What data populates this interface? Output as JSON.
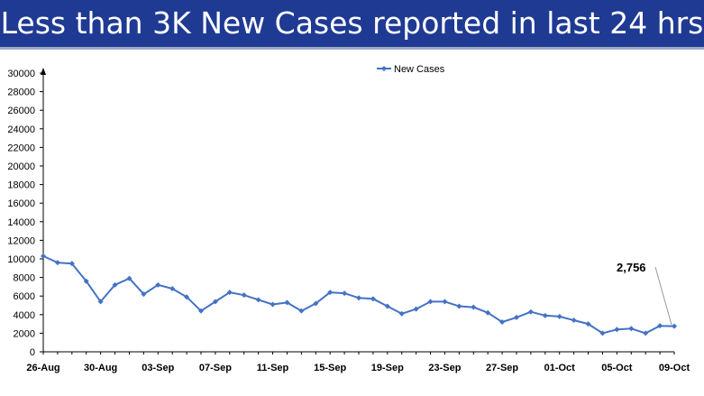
{
  "header": {
    "title": "Less than 3K New Cases reported in last 24 hrs"
  },
  "colors": {
    "banner": "#1f3a93",
    "series": "#4472c4"
  },
  "chart_data": {
    "type": "line",
    "title": "Less than 3K New Cases reported in last 24 hrs",
    "xlabel": "",
    "ylabel": "",
    "ylim": [
      0,
      30000
    ],
    "yticks": [
      0,
      2000,
      4000,
      6000,
      8000,
      10000,
      12000,
      14000,
      16000,
      18000,
      20000,
      22000,
      24000,
      26000,
      28000,
      30000
    ],
    "legend_position": "top",
    "series": [
      {
        "name": "New Cases",
        "x": [
          "26-Aug",
          "27-Aug",
          "28-Aug",
          "29-Aug",
          "30-Aug",
          "31-Aug",
          "01-Sep",
          "02-Sep",
          "03-Sep",
          "04-Sep",
          "05-Sep",
          "06-Sep",
          "07-Sep",
          "08-Sep",
          "09-Sep",
          "10-Sep",
          "11-Sep",
          "12-Sep",
          "13-Sep",
          "14-Sep",
          "15-Sep",
          "16-Sep",
          "17-Sep",
          "18-Sep",
          "19-Sep",
          "20-Sep",
          "21-Sep",
          "22-Sep",
          "23-Sep",
          "24-Sep",
          "25-Sep",
          "26-Sep",
          "27-Sep",
          "28-Sep",
          "29-Sep",
          "30-Sep",
          "01-Oct",
          "02-Oct",
          "03-Oct",
          "04-Oct",
          "05-Oct",
          "06-Oct",
          "07-Oct",
          "08-Oct",
          "09-Oct"
        ],
        "values": [
          10300,
          9600,
          9500,
          7600,
          5400,
          7200,
          7900,
          6200,
          7200,
          6800,
          5900,
          4400,
          5400,
          6400,
          6100,
          5600,
          5100,
          5300,
          4400,
          5200,
          6400,
          6300,
          5800,
          5700,
          4900,
          4100,
          4600,
          5400,
          5400,
          4900,
          4800,
          4200,
          3200,
          3700,
          4300,
          3900,
          3800,
          3400,
          3000,
          2000,
          2400,
          2500,
          2000,
          2800,
          2756
        ]
      }
    ],
    "xtick_labels": [
      "26-Aug",
      "30-Aug",
      "03-Sep",
      "07-Sep",
      "11-Sep",
      "15-Sep",
      "19-Sep",
      "23-Sep",
      "27-Sep",
      "01-Oct",
      "05-Oct",
      "09-Oct"
    ],
    "annotations": [
      {
        "label": "2,756",
        "point": "09-Oct"
      }
    ]
  }
}
